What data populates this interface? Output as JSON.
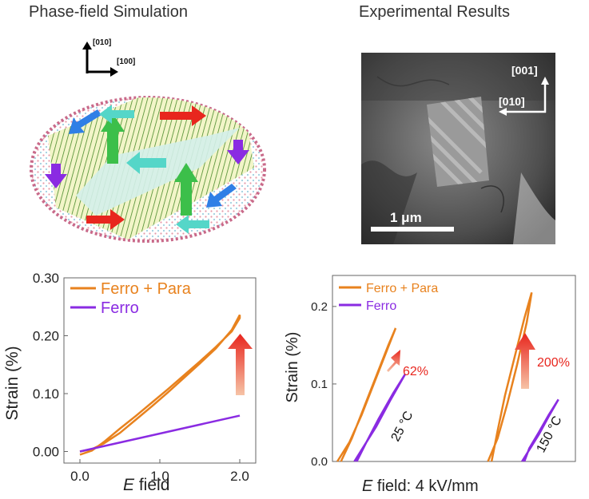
{
  "headings": {
    "left": "Phase-field Simulation",
    "right": "Experimental Results"
  },
  "simulation_panel": {
    "axis_indicator": {
      "vertical": "[010]",
      "horizontal": "[100]"
    },
    "arrow_colors": {
      "red": "#e8261e",
      "blue": "#2f7fe6",
      "purple": "#8a2be2",
      "green": "#3cbf4a",
      "cyan": "#55d6c8"
    }
  },
  "tem_panel": {
    "axis_indicator": {
      "vertical": "[001]",
      "horizontal": "[010]"
    },
    "scale_bar": "1 μm"
  },
  "chart_data": [
    {
      "type": "line",
      "panel": "simulation",
      "xlabel_italic": "E",
      "xlabel_rest": " field",
      "ylabel": "Strain (%)",
      "xlim": [
        -0.2,
        2.2
      ],
      "ylim": [
        -0.02,
        0.3
      ],
      "xticks": [
        "0.0",
        "1.0",
        "2.0"
      ],
      "xtick_values": [
        0.0,
        1.0,
        2.0
      ],
      "yticks": [
        "0.00",
        "0.10",
        "0.20",
        "0.30"
      ],
      "ytick_values": [
        0.0,
        0.1,
        0.2,
        0.3
      ],
      "legend": [
        "Ferro + Para",
        "Ferro"
      ],
      "series": [
        {
          "name": "Ferro + Para",
          "color": "#e8821e",
          "x": [
            0.0,
            0.15,
            0.3,
            0.5,
            0.7,
            0.9,
            1.1,
            1.3,
            1.5,
            1.7,
            1.9,
            2.0
          ],
          "y": [
            0.0,
            0.004,
            0.014,
            0.032,
            0.055,
            0.078,
            0.102,
            0.127,
            0.152,
            0.178,
            0.21,
            0.236
          ],
          "y_return": [
            0.236,
            0.213,
            0.186,
            0.161,
            0.137,
            0.113,
            0.09,
            0.067,
            0.045,
            0.022,
            0.007,
            0.0
          ]
        },
        {
          "name": "Ferro",
          "color": "#8a2be2",
          "x": [
            0.0,
            2.0
          ],
          "y": [
            0.0,
            0.062
          ]
        }
      ]
    },
    {
      "type": "line",
      "panel": "experiment",
      "xlabel_italic": "E",
      "xlabel_rest": " field: 4 kV/mm",
      "ylabel": "Strain (%)",
      "xlim": [
        0,
        10
      ],
      "ylim": [
        0,
        0.24
      ],
      "yticks": [
        "0.0",
        "0.1",
        "0.2"
      ],
      "ytick_values": [
        0.0,
        0.1,
        0.2
      ],
      "legend": [
        "Ferro + Para",
        "Ferro"
      ],
      "annotations": [
        {
          "label": "62%",
          "color": "#e8261e"
        },
        {
          "label": "200%",
          "color": "#e8261e"
        },
        {
          "label": "25 °C"
        },
        {
          "label": "150 °C"
        }
      ],
      "series": [
        {
          "name": "Ferro + Para (25 °C)",
          "color": "#e8821e",
          "x": [
            0.2,
            0.7,
            1.2,
            1.7,
            2.2,
            2.6
          ],
          "y": [
            0.0,
            0.025,
            0.06,
            0.1,
            0.14,
            0.172
          ],
          "x_return": [
            2.6,
            2.3,
            1.8,
            1.3,
            0.8,
            0.35
          ],
          "y_return": [
            0.172,
            0.15,
            0.11,
            0.07,
            0.03,
            0.0
          ]
        },
        {
          "name": "Ferro (25 °C)",
          "color": "#8a2be2",
          "x": [
            0.9,
            1.3,
            1.8,
            2.4,
            3.0
          ],
          "y": [
            0.0,
            0.02,
            0.045,
            0.08,
            0.113
          ],
          "x_return": [
            3.0,
            2.5,
            1.9,
            1.4,
            1.0
          ],
          "y_return": [
            0.113,
            0.088,
            0.055,
            0.025,
            0.0
          ]
        },
        {
          "name": "Ferro + Para (150 °C)",
          "color": "#e8821e",
          "x": [
            6.4,
            6.8,
            7.2,
            7.6,
            8.0,
            8.2
          ],
          "y": [
            0.0,
            0.03,
            0.075,
            0.125,
            0.18,
            0.218
          ],
          "x_return": [
            8.2,
            7.9,
            7.5,
            7.1,
            6.8,
            6.55
          ],
          "y_return": [
            0.218,
            0.185,
            0.135,
            0.085,
            0.04,
            0.0
          ]
        },
        {
          "name": "Ferro (150 °C)",
          "color": "#8a2be2",
          "x": [
            7.8,
            8.1,
            8.5,
            8.9,
            9.3
          ],
          "y": [
            0.0,
            0.015,
            0.035,
            0.058,
            0.08
          ],
          "x_return": [
            9.3,
            8.9,
            8.5,
            8.1,
            7.9
          ],
          "y_return": [
            0.08,
            0.06,
            0.038,
            0.017,
            0.0
          ]
        }
      ]
    }
  ]
}
